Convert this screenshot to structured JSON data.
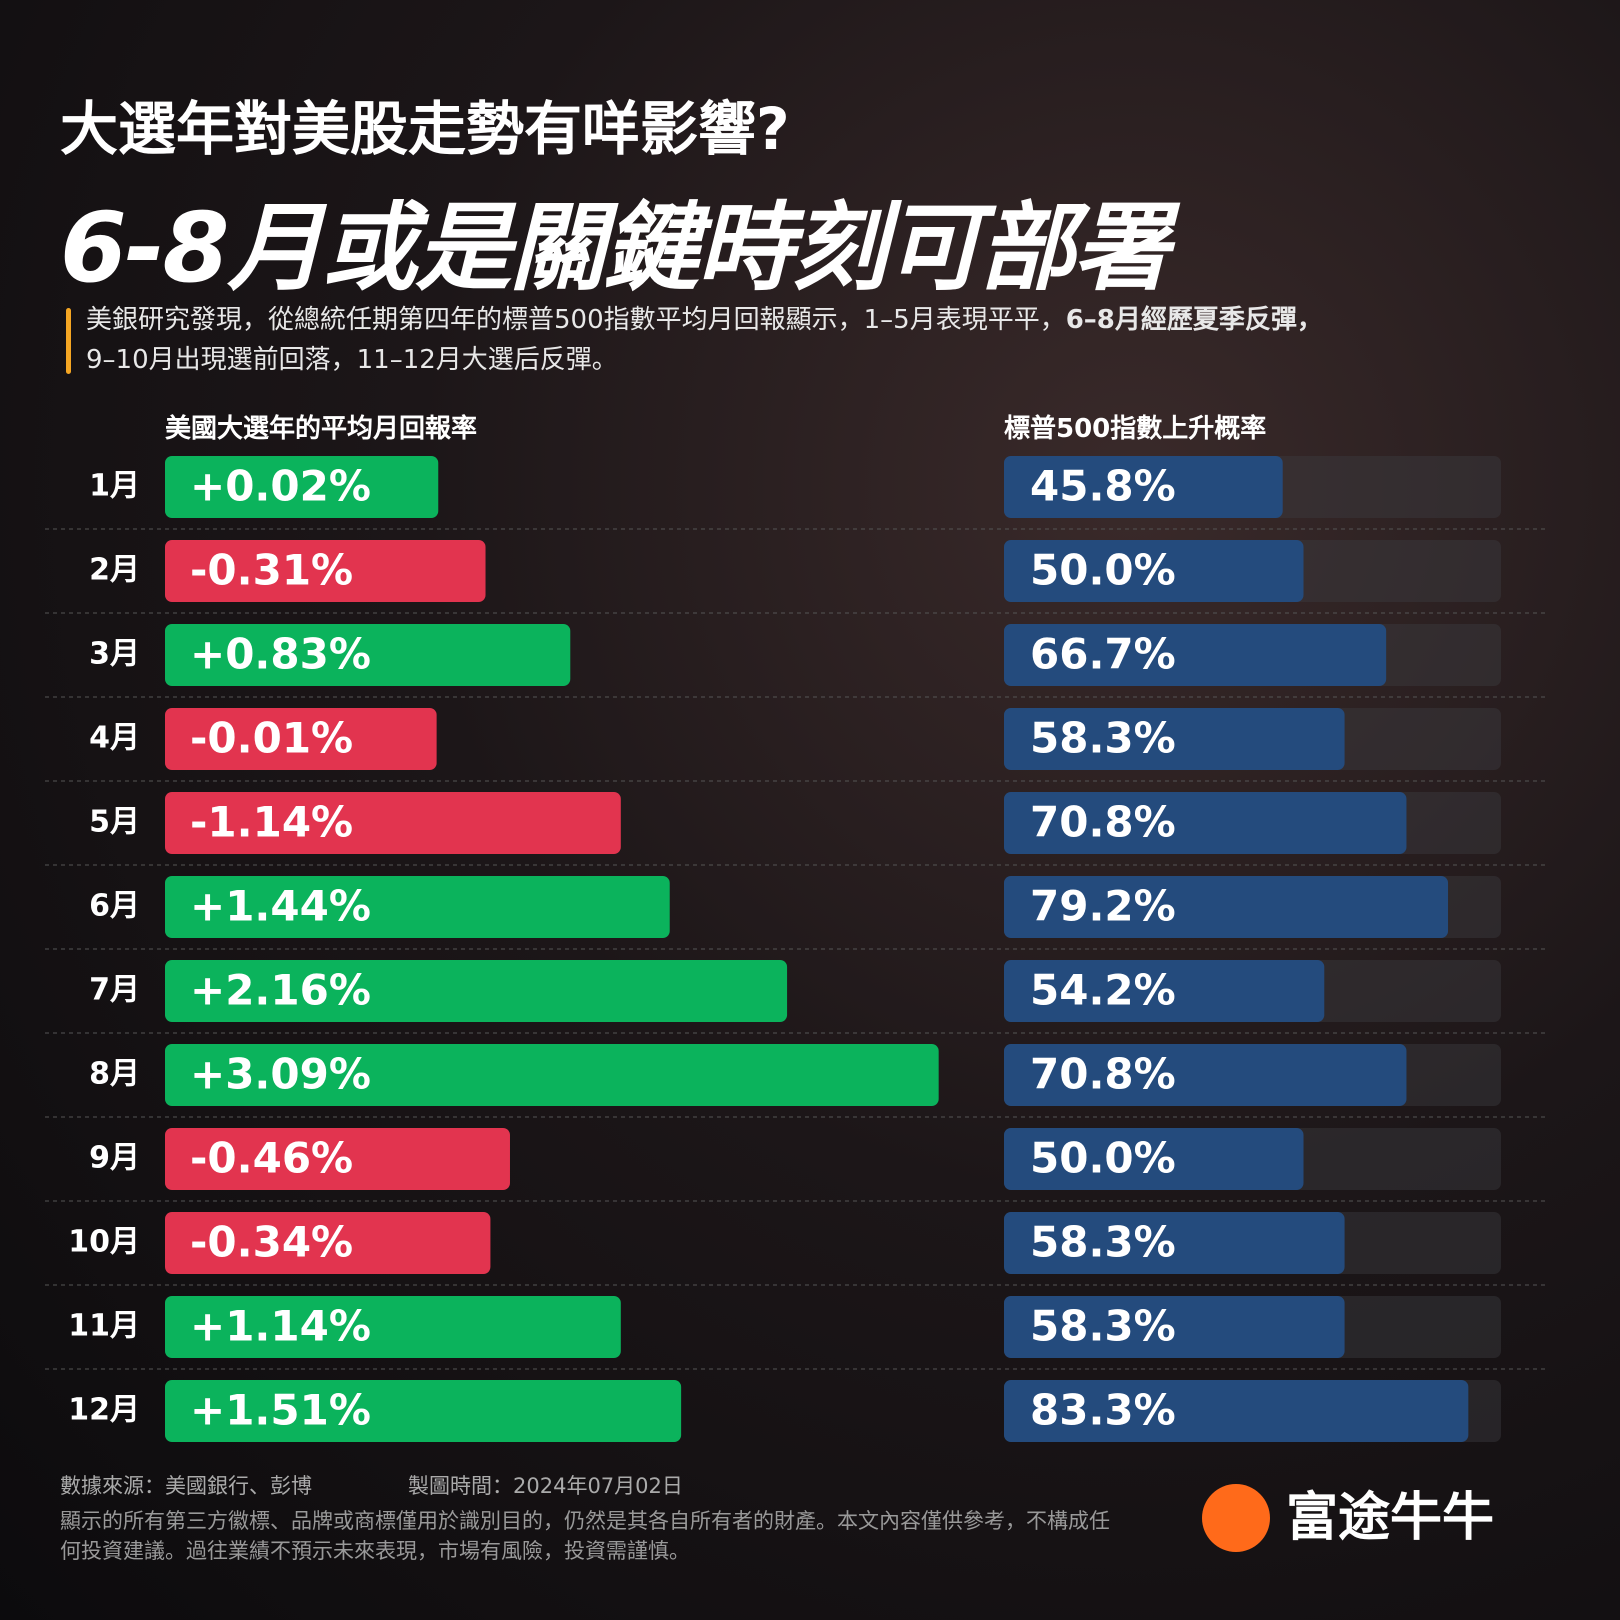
{
  "header": {
    "title": "大選年對美股走勢有咩影響?",
    "headline": "6-8月或是關鍵時刻可部署",
    "subtitle": {
      "part1": "美銀研究發現，從總統任期第四年的標普500指數平均月回報顯示，1–5月表現平平，",
      "bold": "6–8月經歷夏季反彈，",
      "part2": "9–10月出現選前回落，11–12月大選后反彈。"
    }
  },
  "chart_data": [
    {
      "type": "bar",
      "orientation": "horizontal",
      "title": "美國大選年的平均月回報率",
      "categories": [
        "1月",
        "2月",
        "3月",
        "4月",
        "5月",
        "6月",
        "7月",
        "8月",
        "9月",
        "10月",
        "11月",
        "12月"
      ],
      "values": [
        0.02,
        -0.31,
        0.83,
        -0.01,
        -1.14,
        1.44,
        2.16,
        3.09,
        -0.46,
        -0.34,
        1.14,
        1.51
      ],
      "value_labels": [
        "+0.02%",
        "-0.31%",
        "+0.83%",
        "-0.01%",
        "-1.14%",
        "+1.44%",
        "+2.16%",
        "+3.09%",
        "-0.46%",
        "-0.34%",
        "+1.14%",
        "+1.51%"
      ],
      "positive_color": "#0bb35c",
      "negative_color": "#e2344f"
    },
    {
      "type": "bar",
      "orientation": "horizontal",
      "title": "標普500指數上升概率",
      "values": [
        45.8,
        50.0,
        66.7,
        58.3,
        70.8,
        79.2,
        54.2,
        70.8,
        50.0,
        58.3,
        58.3,
        83.3
      ],
      "value_labels": [
        "45.8%",
        "50.0%",
        "66.7%",
        "58.3%",
        "70.8%",
        "79.2%",
        "54.2%",
        "70.8%",
        "50.0%",
        "58.3%",
        "58.3%",
        "83.3%"
      ],
      "color": "#244b7d"
    }
  ],
  "footer": {
    "source": "數據來源：美國銀行、彭博",
    "date": "製圖時間：2024年07月02日",
    "disclaimer": "顯示的所有第三方徽標、品牌或商標僅用於識別目的，仍然是其各自所有者的財產。本文內容僅供參考，不構成任何投資建議。過往業績不預示未來表現，市場有風險，投資需謹慎。",
    "brand": "富途牛牛"
  }
}
